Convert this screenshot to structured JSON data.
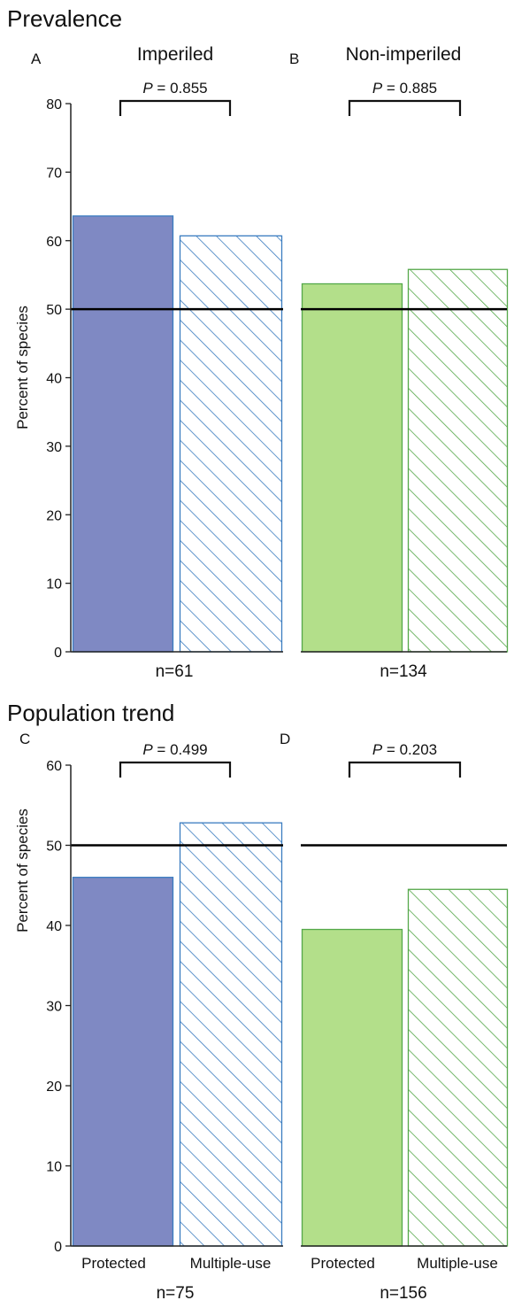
{
  "colors": {
    "imperiled_fill": "#7f89c3",
    "imperiled_edge": "#3a7cc0",
    "nonimperiled_fill": "#b3df8a",
    "nonimperiled_edge": "#55a84a",
    "reference_line": "#000000"
  },
  "chart_data": [
    {
      "type": "bar",
      "section_title": "Prevalence",
      "panel_letter": "A",
      "title": "Imperiled",
      "ylabel": "Percent of species",
      "ylim": [
        0,
        80
      ],
      "yticks": [
        "0",
        "10",
        "20",
        "30",
        "40",
        "50",
        "60",
        "70",
        "80"
      ],
      "categories": [
        "Protected",
        "Multiple-use"
      ],
      "values": [
        63.6,
        60.7
      ],
      "reference_line": 50,
      "p_value": "P = 0.855",
      "n": "n=61",
      "group": "imperiled"
    },
    {
      "type": "bar",
      "section_title": "",
      "panel_letter": "B",
      "title": "Non-imperiled",
      "ylim": [
        0,
        80
      ],
      "categories": [
        "Protected",
        "Multiple-use"
      ],
      "values": [
        53.7,
        55.8
      ],
      "reference_line": 50,
      "p_value": "P = 0.885",
      "n": "n=134",
      "group": "nonimperiled"
    },
    {
      "type": "bar",
      "section_title": "Population trend",
      "panel_letter": "C",
      "title": "",
      "ylabel": "Percent of species",
      "ylim": [
        0,
        60
      ],
      "yticks": [
        "0",
        "10",
        "20",
        "30",
        "40",
        "50",
        "60"
      ],
      "categories": [
        "Protected",
        "Multiple-use"
      ],
      "values": [
        46.0,
        52.8
      ],
      "reference_line": 50,
      "p_value": "P = 0.499",
      "n": "n=75",
      "group": "imperiled"
    },
    {
      "type": "bar",
      "section_title": "",
      "panel_letter": "D",
      "title": "",
      "ylim": [
        0,
        60
      ],
      "categories": [
        "Protected",
        "Multiple-use"
      ],
      "values": [
        39.5,
        44.5
      ],
      "reference_line": 50,
      "p_value": "P = 0.203",
      "n": "n=156",
      "group": "nonimperiled"
    }
  ]
}
